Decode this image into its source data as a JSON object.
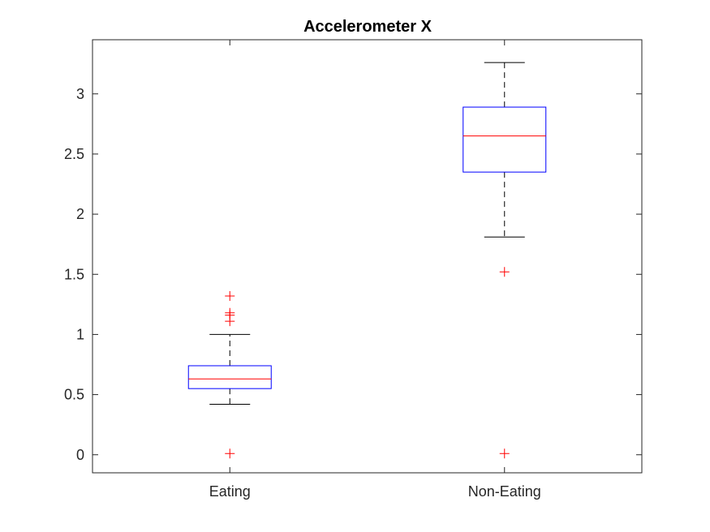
{
  "chart_data": {
    "type": "boxplot",
    "title": "Accelerometer X",
    "xlabel": "",
    "ylabel": "",
    "ylim": [
      -0.15,
      3.45
    ],
    "yticks": [
      "0",
      "0.5",
      "1",
      "1.5",
      "2",
      "2.5",
      "3"
    ],
    "ytick_values": [
      0,
      0.5,
      1,
      1.5,
      2,
      2.5,
      3
    ],
    "grid": false,
    "categories": [
      "Eating",
      "Non-Eating"
    ],
    "boxes": [
      {
        "name": "Eating",
        "whisker_low": 0.42,
        "q1": 0.55,
        "median": 0.63,
        "q3": 0.74,
        "whisker_high": 1.0,
        "outliers": [
          0.01,
          1.11,
          1.16,
          1.18,
          1.32
        ]
      },
      {
        "name": "Non-Eating",
        "whisker_low": 1.81,
        "q1": 2.35,
        "median": 2.65,
        "q3": 2.89,
        "whisker_high": 3.26,
        "outliers": [
          0.01,
          1.52
        ]
      }
    ],
    "colors": {
      "box": "#0000ff",
      "median": "#ff0000",
      "whisker": "#000000",
      "outlier": "#ff0000",
      "axes": "#262626"
    }
  }
}
